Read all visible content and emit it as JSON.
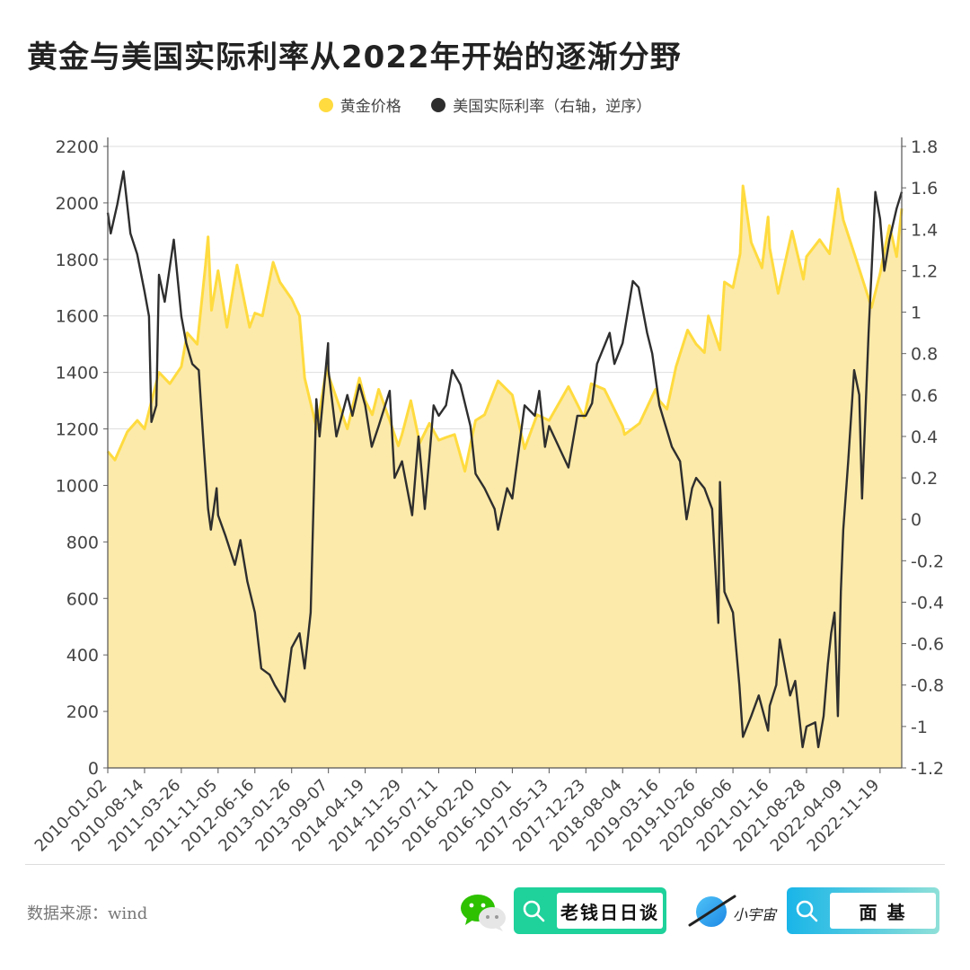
{
  "title": "黄金与美国实际利率从2022年开始的逐渐分野",
  "source": "数据来源：wind",
  "brands": {
    "box1": "老钱日日谈",
    "box2": "面 基",
    "planet": "小宇宙"
  },
  "icons": {
    "wechat": "wechat-icon",
    "search": "search-icon",
    "planet": "planet-icon"
  },
  "colors": {
    "gold_line": "#FFDB3F",
    "gold_fill": "#FCEAAA",
    "rate_line": "#2E2E2E",
    "brand_green": "#1FD19B",
    "brand_blue": "#19B5E8"
  },
  "chart_data": {
    "type": "line",
    "legend": [
      "黄金价格",
      "美国实际利率（右轴，逆序）"
    ],
    "y_left": {
      "range": [
        0,
        2200
      ],
      "ticks": [
        "0",
        "200",
        "400",
        "600",
        "800",
        "1000",
        "1200",
        "1400",
        "1600",
        "1800",
        "2000",
        "2200"
      ]
    },
    "y_right": {
      "range": [
        -1.2,
        1.8
      ],
      "inverted_series": true,
      "ticks": [
        "-1.2",
        "-1",
        "-0.8",
        "-0.6",
        "-0.4",
        "-0.2",
        "0",
        "0.2",
        "0.4",
        "0.6",
        "0.8",
        "1",
        "1.2",
        "1.4",
        "1.6",
        "1.8"
      ]
    },
    "x_ticks": [
      "2010-01-02",
      "2010-08-14",
      "2011-03-26",
      "2011-11-05",
      "2012-06-16",
      "2013-01-26",
      "2013-09-07",
      "2014-04-19",
      "2014-11-29",
      "2015-07-11",
      "2016-02-20",
      "2016-10-01",
      "2017-05-13",
      "2017-12-23",
      "2018-08-04",
      "2019-03-16",
      "2019-10-26",
      "2020-06-06",
      "2021-01-16",
      "2021-08-28",
      "2022-04-09",
      "2022-11-19"
    ],
    "x_range": [
      "2010-01-02",
      "2023-03-31"
    ],
    "grid": true,
    "legend_position": "top-center",
    "series": [
      {
        "name": "黄金价格",
        "axis": "left",
        "style": "area",
        "points": [
          [
            "2010-01-02",
            1120
          ],
          [
            "2010-02-15",
            1090
          ],
          [
            "2010-05-01",
            1190
          ],
          [
            "2010-07-01",
            1230
          ],
          [
            "2010-08-14",
            1200
          ],
          [
            "2010-10-01",
            1310
          ],
          [
            "2010-11-10",
            1400
          ],
          [
            "2011-01-15",
            1360
          ],
          [
            "2011-03-26",
            1420
          ],
          [
            "2011-05-01",
            1540
          ],
          [
            "2011-07-01",
            1500
          ],
          [
            "2011-08-20",
            1780
          ],
          [
            "2011-09-05",
            1880
          ],
          [
            "2011-09-26",
            1620
          ],
          [
            "2011-11-05",
            1760
          ],
          [
            "2011-12-29",
            1560
          ],
          [
            "2012-02-28",
            1780
          ],
          [
            "2012-05-15",
            1560
          ],
          [
            "2012-06-16",
            1610
          ],
          [
            "2012-08-01",
            1600
          ],
          [
            "2012-10-05",
            1790
          ],
          [
            "2012-11-15",
            1720
          ],
          [
            "2013-01-26",
            1660
          ],
          [
            "2013-03-15",
            1600
          ],
          [
            "2013-04-15",
            1380
          ],
          [
            "2013-06-28",
            1200
          ],
          [
            "2013-08-28",
            1420
          ],
          [
            "2013-09-07",
            1390
          ],
          [
            "2013-12-31",
            1200
          ],
          [
            "2014-03-15",
            1380
          ],
          [
            "2014-04-19",
            1300
          ],
          [
            "2014-06-01",
            1250
          ],
          [
            "2014-07-10",
            1340
          ],
          [
            "2014-09-15",
            1230
          ],
          [
            "2014-11-07",
            1140
          ],
          [
            "2014-11-29",
            1180
          ],
          [
            "2015-01-22",
            1300
          ],
          [
            "2015-03-17",
            1150
          ],
          [
            "2015-05-15",
            1220
          ],
          [
            "2015-07-11",
            1160
          ],
          [
            "2015-08-24",
            1170
          ],
          [
            "2015-10-15",
            1180
          ],
          [
            "2015-12-17",
            1050
          ],
          [
            "2016-02-20",
            1230
          ],
          [
            "2016-04-15",
            1250
          ],
          [
            "2016-07-06",
            1370
          ],
          [
            "2016-10-01",
            1320
          ],
          [
            "2016-12-15",
            1130
          ],
          [
            "2017-03-01",
            1250
          ],
          [
            "2017-05-13",
            1230
          ],
          [
            "2017-09-08",
            1350
          ],
          [
            "2017-12-12",
            1240
          ],
          [
            "2017-12-23",
            1270
          ],
          [
            "2018-01-25",
            1360
          ],
          [
            "2018-04-15",
            1340
          ],
          [
            "2018-08-04",
            1210
          ],
          [
            "2018-08-16",
            1180
          ],
          [
            "2018-11-15",
            1220
          ],
          [
            "2019-02-20",
            1340
          ],
          [
            "2019-03-16",
            1300
          ],
          [
            "2019-05-01",
            1270
          ],
          [
            "2019-06-25",
            1420
          ],
          [
            "2019-09-04",
            1550
          ],
          [
            "2019-10-26",
            1500
          ],
          [
            "2019-12-15",
            1470
          ],
          [
            "2020-01-08",
            1600
          ],
          [
            "2020-03-19",
            1480
          ],
          [
            "2020-04-15",
            1720
          ],
          [
            "2020-06-06",
            1700
          ],
          [
            "2020-07-20",
            1820
          ],
          [
            "2020-08-06",
            2060
          ],
          [
            "2020-09-25",
            1860
          ],
          [
            "2020-11-30",
            1770
          ],
          [
            "2021-01-06",
            1950
          ],
          [
            "2021-01-16",
            1840
          ],
          [
            "2021-03-08",
            1680
          ],
          [
            "2021-06-01",
            1900
          ],
          [
            "2021-08-09",
            1730
          ],
          [
            "2021-08-28",
            1810
          ],
          [
            "2021-11-16",
            1870
          ],
          [
            "2022-01-15",
            1820
          ],
          [
            "2022-03-08",
            2050
          ],
          [
            "2022-04-09",
            1940
          ],
          [
            "2022-06-15",
            1820
          ],
          [
            "2022-09-28",
            1630
          ],
          [
            "2022-11-19",
            1750
          ],
          [
            "2023-01-15",
            1920
          ],
          [
            "2023-02-28",
            1810
          ],
          [
            "2023-03-31",
            1980
          ]
        ]
      },
      {
        "name": "美国实际利率（右轴，逆序）",
        "axis": "right",
        "style": "line",
        "points": [
          [
            "2010-01-02",
            1.48
          ],
          [
            "2010-01-20",
            1.38
          ],
          [
            "2010-03-01",
            1.52
          ],
          [
            "2010-04-08",
            1.68
          ],
          [
            "2010-05-20",
            1.38
          ],
          [
            "2010-06-30",
            1.28
          ],
          [
            "2010-08-14",
            1.1
          ],
          [
            "2010-09-10",
            0.98
          ],
          [
            "2010-09-25",
            0.47
          ],
          [
            "2010-10-25",
            0.55
          ],
          [
            "2010-11-10",
            1.18
          ],
          [
            "2010-12-15",
            1.05
          ],
          [
            "2011-02-08",
            1.35
          ],
          [
            "2011-03-26",
            0.98
          ],
          [
            "2011-04-25",
            0.85
          ],
          [
            "2011-06-01",
            0.75
          ],
          [
            "2011-07-10",
            0.72
          ],
          [
            "2011-08-10",
            0.35
          ],
          [
            "2011-09-05",
            0.05
          ],
          [
            "2011-09-22",
            -0.05
          ],
          [
            "2011-10-27",
            0.15
          ],
          [
            "2011-11-05",
            0.02
          ],
          [
            "2011-12-20",
            -0.08
          ],
          [
            "2012-02-15",
            -0.22
          ],
          [
            "2012-03-20",
            -0.1
          ],
          [
            "2012-05-01",
            -0.3
          ],
          [
            "2012-06-16",
            -0.45
          ],
          [
            "2012-07-25",
            -0.72
          ],
          [
            "2012-09-14",
            -0.75
          ],
          [
            "2012-10-15",
            -0.8
          ],
          [
            "2012-12-15",
            -0.88
          ],
          [
            "2013-01-26",
            -0.62
          ],
          [
            "2013-03-15",
            -0.55
          ],
          [
            "2013-04-15",
            -0.72
          ],
          [
            "2013-05-22",
            -0.45
          ],
          [
            "2013-06-25",
            0.58
          ],
          [
            "2013-07-15",
            0.4
          ],
          [
            "2013-09-05",
            0.85
          ],
          [
            "2013-09-07",
            0.72
          ],
          [
            "2013-10-25",
            0.4
          ],
          [
            "2013-12-31",
            0.6
          ],
          [
            "2014-01-31",
            0.5
          ],
          [
            "2014-03-15",
            0.65
          ],
          [
            "2014-04-19",
            0.55
          ],
          [
            "2014-05-29",
            0.35
          ],
          [
            "2014-07-10",
            0.45
          ],
          [
            "2014-09-15",
            0.62
          ],
          [
            "2014-10-15",
            0.2
          ],
          [
            "2014-11-29",
            0.28
          ],
          [
            "2015-01-30",
            0.02
          ],
          [
            "2015-03-10",
            0.4
          ],
          [
            "2015-04-17",
            0.05
          ],
          [
            "2015-05-15",
            0.3
          ],
          [
            "2015-06-10",
            0.55
          ],
          [
            "2015-07-11",
            0.5
          ],
          [
            "2015-08-24",
            0.55
          ],
          [
            "2015-10-01",
            0.72
          ],
          [
            "2015-11-20",
            0.65
          ],
          [
            "2016-01-20",
            0.45
          ],
          [
            "2016-02-20",
            0.22
          ],
          [
            "2016-04-15",
            0.15
          ],
          [
            "2016-06-15",
            0.05
          ],
          [
            "2016-07-06",
            -0.05
          ],
          [
            "2016-08-30",
            0.15
          ],
          [
            "2016-10-01",
            0.1
          ],
          [
            "2016-12-15",
            0.55
          ],
          [
            "2017-02-15",
            0.5
          ],
          [
            "2017-03-14",
            0.62
          ],
          [
            "2017-04-18",
            0.35
          ],
          [
            "2017-05-13",
            0.45
          ],
          [
            "2017-09-08",
            0.25
          ],
          [
            "2017-11-01",
            0.5
          ],
          [
            "2017-12-23",
            0.5
          ],
          [
            "2018-01-30",
            0.56
          ],
          [
            "2018-03-01",
            0.75
          ],
          [
            "2018-05-17",
            0.9
          ],
          [
            "2018-06-15",
            0.75
          ],
          [
            "2018-08-04",
            0.85
          ],
          [
            "2018-10-05",
            1.15
          ],
          [
            "2018-11-09",
            1.12
          ],
          [
            "2018-12-31",
            0.9
          ],
          [
            "2019-01-31",
            0.8
          ],
          [
            "2019-03-16",
            0.55
          ],
          [
            "2019-05-31",
            0.35
          ],
          [
            "2019-07-20",
            0.28
          ],
          [
            "2019-08-28",
            0.0
          ],
          [
            "2019-10-01",
            0.15
          ],
          [
            "2019-10-26",
            0.2
          ],
          [
            "2019-12-15",
            0.15
          ],
          [
            "2020-01-31",
            0.05
          ],
          [
            "2020-03-09",
            -0.5
          ],
          [
            "2020-03-19",
            0.18
          ],
          [
            "2020-04-15",
            -0.35
          ],
          [
            "2020-06-06",
            -0.45
          ],
          [
            "2020-07-15",
            -0.8
          ],
          [
            "2020-08-06",
            -1.05
          ],
          [
            "2020-09-25",
            -0.95
          ],
          [
            "2020-11-10",
            -0.85
          ],
          [
            "2021-01-06",
            -1.02
          ],
          [
            "2021-01-16",
            -0.9
          ],
          [
            "2021-02-25",
            -0.8
          ],
          [
            "2021-03-18",
            -0.58
          ],
          [
            "2021-04-20",
            -0.72
          ],
          [
            "2021-05-20",
            -0.85
          ],
          [
            "2021-06-20",
            -0.78
          ],
          [
            "2021-08-04",
            -1.1
          ],
          [
            "2021-08-28",
            -1.0
          ],
          [
            "2021-10-20",
            -0.98
          ],
          [
            "2021-11-08",
            -1.1
          ],
          [
            "2021-12-10",
            -0.95
          ],
          [
            "2022-01-05",
            -0.7
          ],
          [
            "2022-01-25",
            -0.55
          ],
          [
            "2022-02-15",
            -0.45
          ],
          [
            "2022-03-07",
            -0.95
          ],
          [
            "2022-03-25",
            -0.35
          ],
          [
            "2022-04-09",
            -0.05
          ],
          [
            "2022-05-09",
            0.28
          ],
          [
            "2022-06-14",
            0.72
          ],
          [
            "2022-07-15",
            0.6
          ],
          [
            "2022-08-01",
            0.1
          ],
          [
            "2022-09-10",
            0.9
          ],
          [
            "2022-10-21",
            1.58
          ],
          [
            "2022-11-19",
            1.45
          ],
          [
            "2022-12-15",
            1.2
          ],
          [
            "2023-01-15",
            1.35
          ],
          [
            "2023-02-28",
            1.5
          ],
          [
            "2023-03-31",
            1.58
          ]
        ]
      }
    ]
  }
}
